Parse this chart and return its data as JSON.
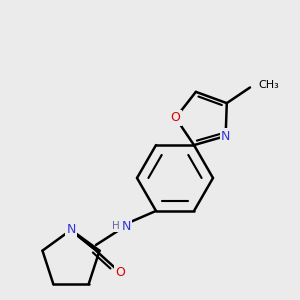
{
  "bg_color": "#ebebeb",
  "lw": 1.8,
  "atom_colors": {
    "O": "#dd0000",
    "N": "#3333dd",
    "H": "#666699"
  },
  "fig_width": 3.0,
  "fig_height": 3.0,
  "dpi": 100
}
